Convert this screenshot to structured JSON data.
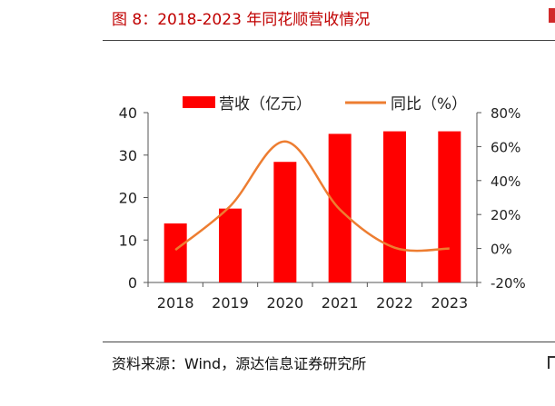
{
  "figure": {
    "title": "图 8：2018-2023 年同花顺营收情况",
    "source": "资料来源：Wind，源达信息证券研究所"
  },
  "chart_data": {
    "type": "bar",
    "categories": [
      "2018",
      "2019",
      "2020",
      "2021",
      "2022",
      "2023"
    ],
    "series": [
      {
        "name": "营收（亿元）",
        "type": "bar",
        "axis": "left",
        "color": "#ff0000",
        "values": [
          13.9,
          17.4,
          28.4,
          35.0,
          35.6,
          35.6
        ]
      },
      {
        "name": "同比（%）",
        "type": "line",
        "axis": "right",
        "color": "#ed7d31",
        "values": [
          -0.8,
          25.0,
          63.0,
          23.0,
          0.5,
          0.0
        ]
      }
    ],
    "left_axis": {
      "min": 0,
      "max": 40,
      "ticks": [
        0,
        10,
        20,
        30,
        40
      ],
      "tick_labels": [
        "0",
        "10",
        "20",
        "30",
        "40"
      ]
    },
    "right_axis": {
      "min": -20,
      "max": 80,
      "ticks": [
        -20,
        0,
        20,
        40,
        60,
        80
      ],
      "tick_labels": [
        "-20%",
        "0%",
        "20%",
        "40%",
        "60%",
        "80%"
      ]
    },
    "legend": "top",
    "grid": false
  }
}
